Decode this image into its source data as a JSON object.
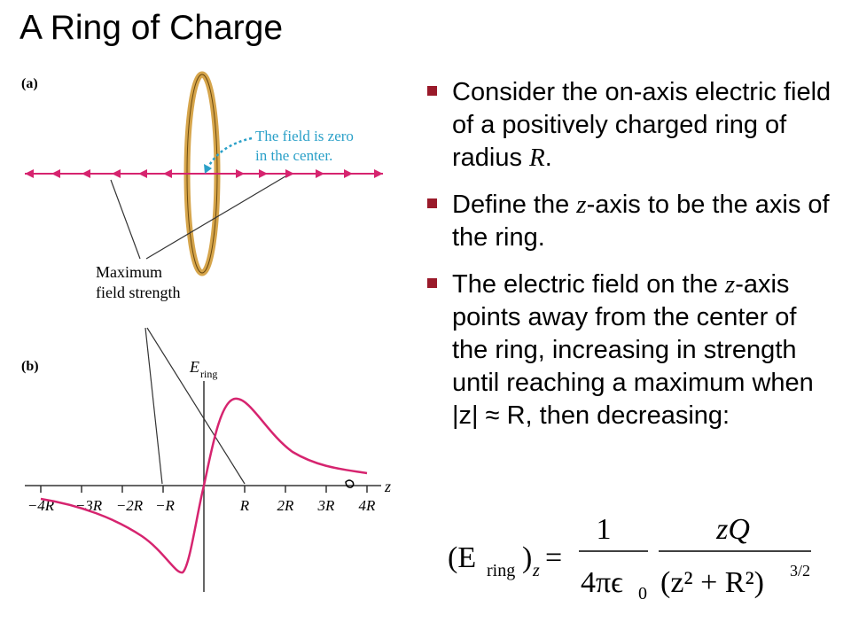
{
  "title": "A Ring of Charge",
  "colors": {
    "arrow": "#d6246f",
    "ring": "#d6a54b",
    "callout": "#2aa0c8",
    "bullet": "#9a1a2a",
    "curve": "#d6246f"
  },
  "panel_a": {
    "label": "(a)",
    "callout_line1": "The field is zero",
    "callout_line2": "in the center.",
    "annotation_line1": "Maximum",
    "annotation_line2": "field strength"
  },
  "panel_b": {
    "label": "(b)",
    "y_axis_label": "E",
    "y_axis_sub": "ring",
    "x_axis_label": "z",
    "tick_labels": [
      "−4R",
      "−3R",
      "−2R",
      "−R",
      "R",
      "2R",
      "3R",
      "4R"
    ]
  },
  "bullets": [
    {
      "pre": "Consider the on-axis electric field of a positively charged ring of radius ",
      "var": "R",
      "post": "."
    },
    {
      "pre": "Define the ",
      "var": "z",
      "post": "-axis to be the axis of the ring."
    },
    {
      "pre": "The electric field on the ",
      "var": "z",
      "post": "-axis points away from the center of the ring, increasing in strength until reaching a maximum when |z| ≈ R, then decreasing:"
    }
  ],
  "formula": {
    "lhs": "(E",
    "lhs_sub": "ring",
    "lhs_close": ")",
    "lhs_sub2": "z",
    "eq": "=",
    "num1": "1",
    "den1": "4πϵ",
    "den1_sub": "0",
    "num2": "zQ",
    "den2": "(z² + R²)",
    "den2_exp": "3/2"
  }
}
